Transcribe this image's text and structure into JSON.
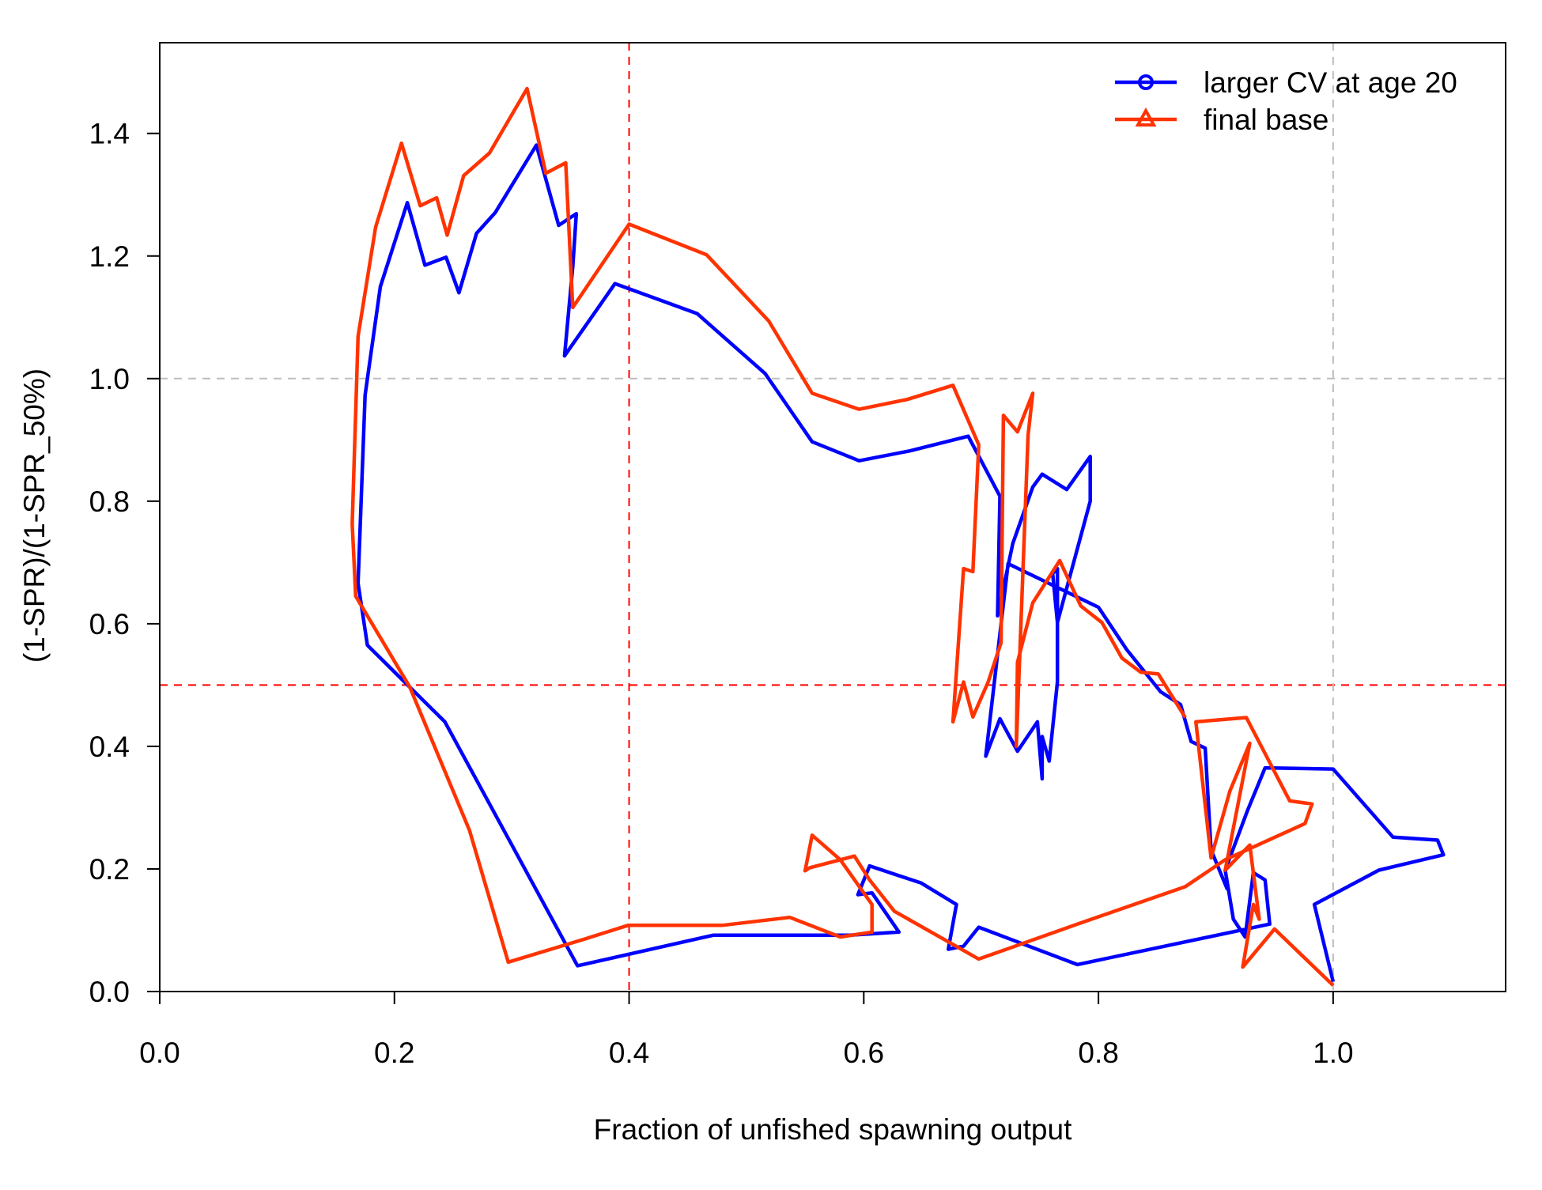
{
  "chart_data": {
    "type": "line",
    "xlabel": "Fraction of unfished spawning output",
    "ylabel": "(1-SPR)/(1-SPR_50%)",
    "xlim": [
      0,
      1.147
    ],
    "ylim": [
      0,
      1.548
    ],
    "xticks": [
      {
        "value": 0,
        "label": "0.0"
      },
      0.2,
      0.4,
      0.6,
      0.8,
      {
        "value": 1,
        "label": "1.0"
      }
    ],
    "yticks": [
      {
        "value": 0,
        "label": "0.0"
      },
      0.2,
      0.4,
      0.6,
      0.8,
      {
        "value": 1,
        "label": "1.0"
      },
      1.2,
      1.4
    ],
    "legend": "top-right",
    "reference_lines": [
      {
        "axis": "x",
        "value": 0.4,
        "color": "#ff0000"
      },
      {
        "axis": "y",
        "value": 0.5,
        "color": "#ff0000"
      },
      {
        "axis": "x",
        "value": 1,
        "color": "#bebebe"
      },
      {
        "axis": "y",
        "value": 1,
        "color": "#bebebe"
      }
    ],
    "series": [
      {
        "name": "larger CV at age 20",
        "color": "#0000ff",
        "marker": "circle",
        "x": [
          1.0,
          0.984,
          1.039,
          1.094,
          1.089,
          1.051,
          1.0,
          0.942,
          0.927,
          0.908,
          0.915,
          0.925,
          0.932,
          0.942,
          0.946,
          0.782,
          0.698,
          0.685,
          0.672,
          0.679,
          0.649,
          0.605,
          0.595,
          0.607,
          0.63,
          0.588,
          0.472,
          0.356,
          0.243,
          0.177,
          0.169,
          0.175,
          0.188,
          0.211,
          0.226,
          0.244,
          0.255,
          0.27,
          0.286,
          0.321,
          0.34,
          0.355,
          0.352,
          0.345,
          0.388,
          0.458,
          0.516,
          0.556,
          0.596,
          0.639,
          0.689,
          0.716,
          0.714,
          0.727,
          0.744,
          0.752,
          0.773,
          0.793,
          0.793,
          0.765,
          0.761,
          0.765,
          0.765,
          0.758,
          0.752,
          0.752,
          0.748,
          0.731,
          0.716,
          0.704,
          0.723,
          0.8,
          0.824,
          0.853,
          0.87,
          0.879,
          0.891,
          0.896,
          0.91
        ],
        "values": [
          0.016,
          0.142,
          0.198,
          0.223,
          0.247,
          0.252,
          0.363,
          0.365,
          0.295,
          0.198,
          0.118,
          0.089,
          0.194,
          0.182,
          0.11,
          0.044,
          0.105,
          0.074,
          0.069,
          0.142,
          0.177,
          0.205,
          0.158,
          0.161,
          0.097,
          0.092,
          0.092,
          0.042,
          0.44,
          0.565,
          0.666,
          0.973,
          1.15,
          1.287,
          1.185,
          1.198,
          1.14,
          1.237,
          1.271,
          1.381,
          1.25,
          1.269,
          1.182,
          1.037,
          1.155,
          1.106,
          1.008,
          0.897,
          0.866,
          0.882,
          0.906,
          0.808,
          0.613,
          0.731,
          0.823,
          0.844,
          0.819,
          0.873,
          0.8,
          0.602,
          0.682,
          0.69,
          0.505,
          0.376,
          0.416,
          0.347,
          0.44,
          0.392,
          0.445,
          0.384,
          0.698,
          0.627,
          0.558,
          0.489,
          0.468,
          0.408,
          0.397,
          0.231,
          0.166
        ]
      },
      {
        "name": "final base",
        "color": "#ff3300",
        "marker": "triangle",
        "x": [
          1.0,
          0.95,
          0.923,
          0.932,
          0.937,
          0.929,
          0.908,
          0.929,
          0.912,
          0.896,
          0.883,
          0.926,
          0.963,
          0.982,
          0.976,
          0.908,
          0.874,
          0.782,
          0.698,
          0.626,
          0.605,
          0.592,
          0.554,
          0.55,
          0.556,
          0.58,
          0.607,
          0.607,
          0.58,
          0.537,
          0.479,
          0.399,
          0.361,
          0.297,
          0.264,
          0.213,
          0.167,
          0.164,
          0.169,
          0.184,
          0.206,
          0.222,
          0.236,
          0.245,
          0.259,
          0.281,
          0.313,
          0.329,
          0.346,
          0.352,
          0.4,
          0.466,
          0.519,
          0.556,
          0.596,
          0.637,
          0.676,
          0.698,
          0.693,
          0.685,
          0.676,
          0.685,
          0.693,
          0.706,
          0.717,
          0.719,
          0.731,
          0.744,
          0.74,
          0.73,
          0.731,
          0.744,
          0.767,
          0.785,
          0.803,
          0.82,
          0.836,
          0.851,
          0.874
        ],
        "values": [
          0.01,
          0.102,
          0.04,
          0.142,
          0.118,
          0.239,
          0.198,
          0.405,
          0.327,
          0.218,
          0.44,
          0.447,
          0.311,
          0.306,
          0.274,
          0.215,
          0.171,
          0.11,
          0.053,
          0.131,
          0.182,
          0.221,
          0.202,
          0.197,
          0.255,
          0.215,
          0.142,
          0.097,
          0.089,
          0.121,
          0.108,
          0.108,
          0.085,
          0.048,
          0.263,
          0.497,
          0.645,
          0.763,
          1.069,
          1.247,
          1.384,
          1.282,
          1.295,
          1.234,
          1.331,
          1.368,
          1.473,
          1.335,
          1.352,
          1.116,
          1.252,
          1.202,
          1.094,
          0.976,
          0.95,
          0.966,
          0.989,
          0.892,
          0.685,
          0.69,
          0.44,
          0.505,
          0.448,
          0.505,
          0.569,
          0.94,
          0.913,
          0.976,
          0.908,
          0.4,
          0.537,
          0.634,
          0.703,
          0.629,
          0.602,
          0.544,
          0.521,
          0.518,
          0.447
        ]
      }
    ]
  }
}
